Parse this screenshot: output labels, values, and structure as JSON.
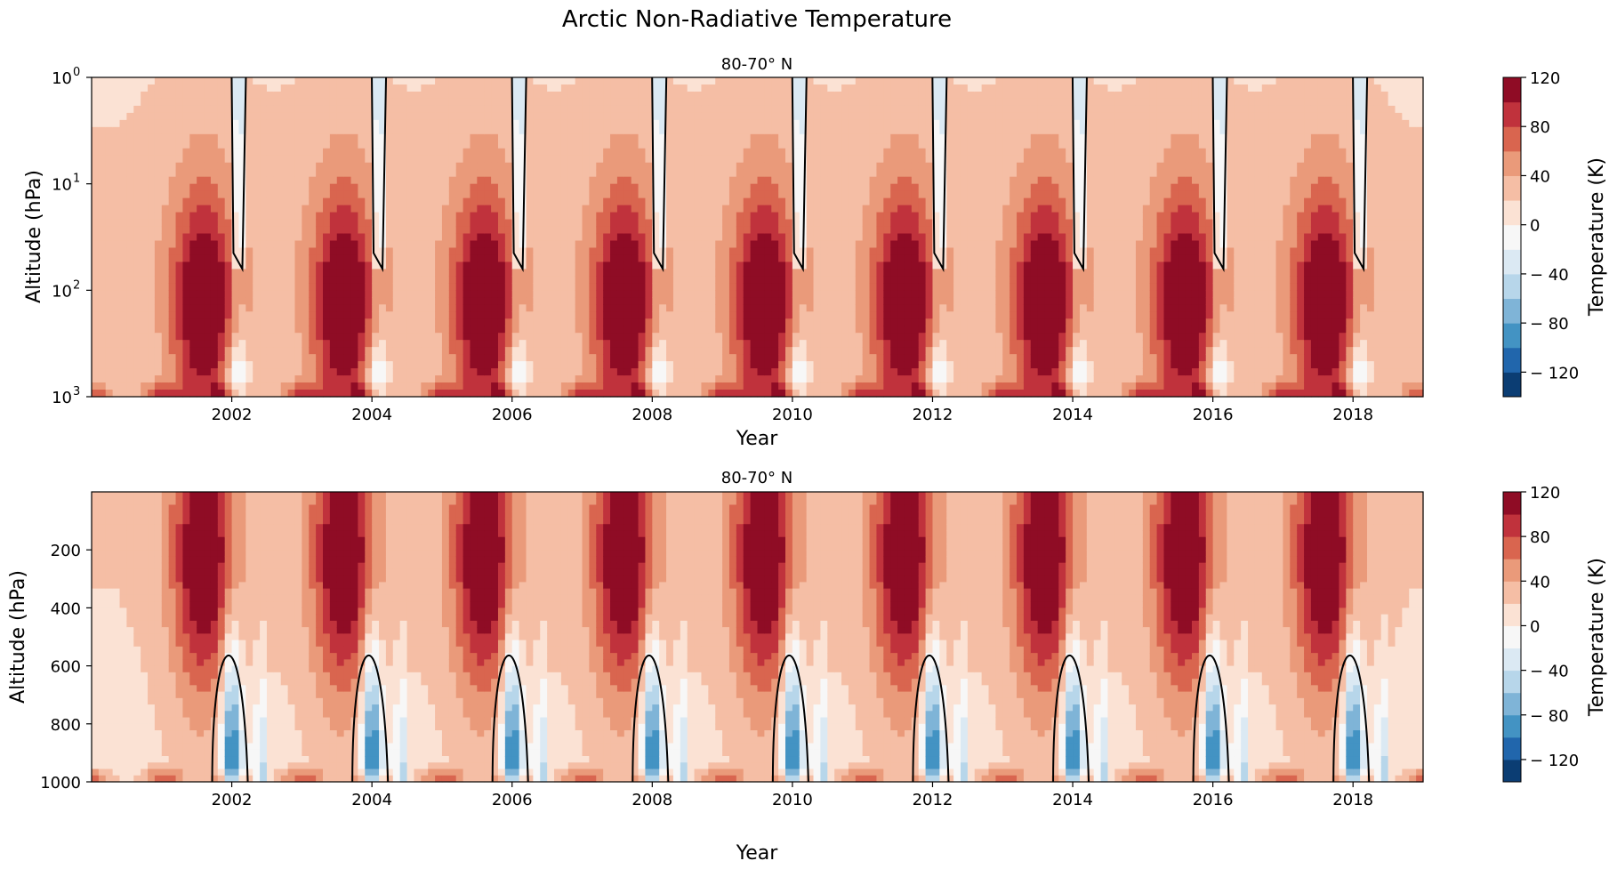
{
  "figure": {
    "title": "Arctic Non-Radiative Temperature"
  },
  "colors": {
    "diverging_scale": [
      "#0b3d73",
      "#2166ac",
      "#4393c3",
      "#7fb4d7",
      "#b7d6ea",
      "#dbe9f3",
      "#f7f7f7",
      "#fbe2d4",
      "#f5bea5",
      "#ea9a7a",
      "#d9654f",
      "#c0323c",
      "#8f0c25"
    ],
    "contour": "#000000"
  },
  "chart_data": [
    {
      "type": "heatmap",
      "title": "80-70° N",
      "xlabel": "Year",
      "ylabel": "Altitude (hPa)",
      "yscale": "log",
      "ylim": [
        1000,
        1
      ],
      "xlim": [
        2000.0,
        2019.0
      ],
      "x_ticks": [
        "2002",
        "2004",
        "2006",
        "2008",
        "2010",
        "2012",
        "2014",
        "2016",
        "2018"
      ],
      "y_ticks": [
        {
          "base": "10",
          "exp": "0",
          "value": 1
        },
        {
          "base": "10",
          "exp": "1",
          "value": 10
        },
        {
          "base": "10",
          "exp": "2",
          "value": 100
        },
        {
          "base": "10",
          "exp": "3",
          "value": 1000
        }
      ],
      "colorbar": {
        "label": "Temperature (K)",
        "range": [
          -140,
          120
        ],
        "levels": 13,
        "tick_labels": [
          "120",
          "80",
          "40",
          "0",
          "− 40",
          "− 80",
          "− 120"
        ],
        "tick_values": [
          120,
          80,
          40,
          0,
          -40,
          -80,
          -120
        ]
      },
      "notes": "Annual cycle: warm (+40 to +100 K) maxima near 200-300 hPa each winter; cold (below 0 K) tongues from top in late winter of even years; cold pools near 1000 hPa.",
      "cold_event_years": [
        2002.1,
        2004.1,
        2006.1,
        2008.1,
        2010.1,
        2012.1,
        2014.1,
        2016.1,
        2018.1
      ],
      "warm_core_years": [
        2001.6,
        2003.6,
        2005.6,
        2007.6,
        2009.6,
        2011.6,
        2013.6,
        2015.6,
        2017.6
      ]
    },
    {
      "type": "heatmap",
      "title": "80-70° N",
      "xlabel": "Year",
      "ylabel": "Altitude (hPa)",
      "yscale": "linear",
      "ylim": [
        1000,
        0
      ],
      "xlim": [
        2000.0,
        2019.0
      ],
      "x_ticks": [
        "2002",
        "2004",
        "2006",
        "2008",
        "2010",
        "2012",
        "2014",
        "2016",
        "2018"
      ],
      "y_ticks": [
        "200",
        "400",
        "600",
        "800",
        "1000"
      ],
      "y_tick_values": [
        200,
        400,
        600,
        800,
        1000
      ],
      "colorbar": {
        "label": "Temperature (K)",
        "range": [
          -140,
          120
        ],
        "levels": 13,
        "tick_labels": [
          "120",
          "80",
          "40",
          "0",
          "− 40",
          "− 80",
          "− 120"
        ],
        "tick_values": [
          120,
          80,
          40,
          0,
          -40,
          -80,
          -120
        ]
      },
      "notes": "Same field on linear pressure axis: warm (+60 to +100 K) cores near 200-300 hPa; cold (down to -120 K) plumes from 1000 hPa up to ~500 hPa in winter of even years.",
      "cold_event_years": [
        2002.0,
        2004.0,
        2006.0,
        2008.0,
        2010.0,
        2012.0,
        2014.0,
        2016.0,
        2018.0
      ],
      "warm_core_years": [
        2001.6,
        2003.6,
        2005.6,
        2007.6,
        2009.6,
        2011.6,
        2013.6,
        2015.6,
        2017.6
      ]
    }
  ]
}
